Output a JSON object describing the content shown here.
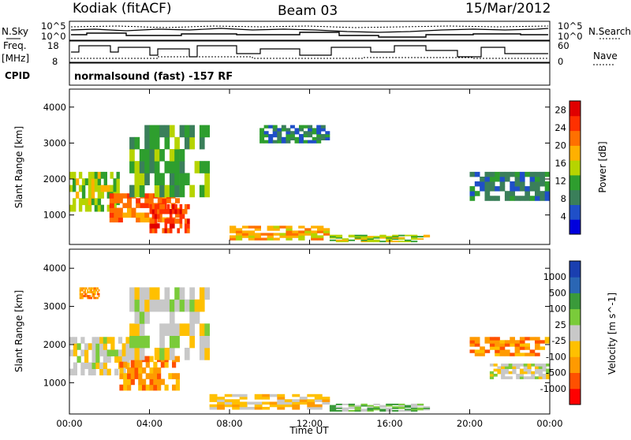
{
  "header": {
    "station": "Kodiak (fitACF)",
    "beam": "Beam 03",
    "date": "15/Mar/2012"
  },
  "left_labels": {
    "nsky": "N.Sky",
    "freq_line1": "Freq.",
    "freq_line2": "[MHz]",
    "cpid": "CPID"
  },
  "right_labels": {
    "nsearch": "N.Search",
    "nave": "Nave"
  },
  "noise_panel": {
    "yticks_left": [
      "10^5",
      "10^0"
    ],
    "yticks_right": [
      "10^5",
      "10^0"
    ]
  },
  "freq_panel": {
    "yticks_left": [
      "18",
      "8"
    ],
    "yticks_right": [
      "60",
      "0"
    ]
  },
  "cpid_text": "normalsound (fast) -157 RF",
  "colors": {
    "power_scale": [
      "#0000dd",
      "#1f4fc8",
      "#3a7f5a",
      "#2e9e2e",
      "#b6d400",
      "#ffb000",
      "#ff7000",
      "#ff3000",
      "#e00000"
    ],
    "velocity_scale": [
      "#ff0000",
      "#ff5000",
      "#ff9a00",
      "#ffc000",
      "#c8c8c8",
      "#7acb3a",
      "#3a9a3a",
      "#2a66b4",
      "#1a3fb0"
    ]
  },
  "chart_data": [
    {
      "type": "heatmap",
      "title": "",
      "xlabel": "Time UT",
      "ylabel": "Slant Range [km]",
      "x_ticks": [
        "00:00",
        "04:00",
        "08:00",
        "12:00",
        "16:00",
        "20:00",
        "00:00"
      ],
      "xlim": [
        0,
        24
      ],
      "y_ticks": [
        "1000",
        "2000",
        "3000",
        "4000"
      ],
      "ylim": [
        180,
        4500
      ],
      "colorbar_label": "Power [dB]",
      "colorbar_ticks": [
        "4",
        "8",
        "12",
        "16",
        "20",
        "24",
        "28"
      ],
      "clim": [
        0,
        30
      ],
      "regions": [
        {
          "t": [
            0.0,
            2.5
          ],
          "range": [
            1100,
            2200
          ],
          "value": 14
        },
        {
          "t": [
            2.0,
            5.5
          ],
          "range": [
            800,
            1600
          ],
          "value": 24
        },
        {
          "t": [
            3.0,
            7.0
          ],
          "range": [
            1500,
            3500
          ],
          "value": 12
        },
        {
          "t": [
            4.0,
            6.0
          ],
          "range": [
            500,
            1300
          ],
          "value": 28
        },
        {
          "t": [
            8.0,
            13.0
          ],
          "range": [
            300,
            700
          ],
          "value": 20
        },
        {
          "t": [
            9.5,
            13.0
          ],
          "range": [
            3000,
            3500
          ],
          "value": 8
        },
        {
          "t": [
            13.0,
            18.0
          ],
          "range": [
            250,
            450
          ],
          "value": 14
        },
        {
          "t": [
            20.0,
            24.0
          ],
          "range": [
            1400,
            2200
          ],
          "value": 6
        }
      ]
    },
    {
      "type": "heatmap",
      "title": "",
      "xlabel": "Time UT",
      "ylabel": "Slant Range [km]",
      "x_ticks": [
        "00:00",
        "04:00",
        "08:00",
        "12:00",
        "16:00",
        "20:00",
        "00:00"
      ],
      "xlim": [
        0,
        24
      ],
      "y_ticks": [
        "1000",
        "2000",
        "3000",
        "4000"
      ],
      "ylim": [
        180,
        4500
      ],
      "colorbar_label": "Velocity [m s^-1]",
      "colorbar_ticks": [
        "1000",
        "500",
        "100",
        "25",
        "-25",
        "-100",
        "-500",
        "-1000"
      ],
      "regions": [
        {
          "t": [
            0.0,
            3.0
          ],
          "range": [
            1200,
            2200
          ],
          "value": 0
        },
        {
          "t": [
            0.5,
            1.5
          ],
          "range": [
            3200,
            3500
          ],
          "value": -150
        },
        {
          "t": [
            2.5,
            5.5
          ],
          "range": [
            800,
            1700
          ],
          "value": -150
        },
        {
          "t": [
            3.0,
            7.0
          ],
          "range": [
            1600,
            3500
          ],
          "value": 0
        },
        {
          "t": [
            7.0,
            13.0
          ],
          "range": [
            300,
            700
          ],
          "value": -40
        },
        {
          "t": [
            13.0,
            18.0
          ],
          "range": [
            250,
            450
          ],
          "value": 60
        },
        {
          "t": [
            20.0,
            24.0
          ],
          "range": [
            1700,
            2200
          ],
          "value": -300
        },
        {
          "t": [
            21.0,
            24.0
          ],
          "range": [
            1100,
            1500
          ],
          "value": 0
        }
      ]
    }
  ]
}
